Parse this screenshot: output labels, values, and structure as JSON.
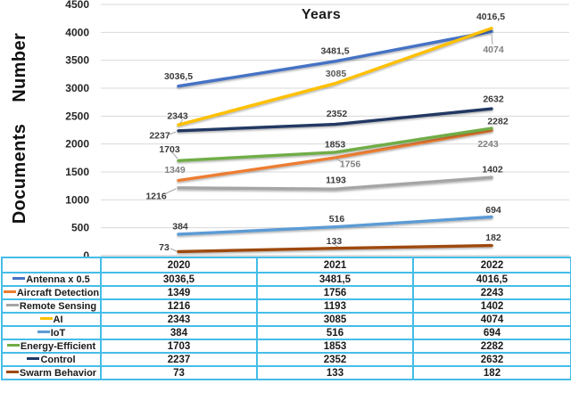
{
  "chart_data": {
    "type": "line",
    "title": "Years",
    "ylabel": "Documents  Number",
    "xlabel": "",
    "ylim": [
      0,
      4500
    ],
    "ytick_step": 500,
    "grid": true,
    "grid_color": "#D9D9D9",
    "axis_color": "#BFBFBF",
    "table_border_color": "#45BDE8",
    "legend_position": "table-left-column",
    "categories": [
      "2020",
      "2021",
      "2022"
    ],
    "series": [
      {
        "name": "Antenna x 0.5",
        "color": "#4472C4",
        "values": [
          3036.5,
          3481.5,
          4016.5
        ],
        "labels": [
          "3036,5",
          "3481,5",
          "4016,5"
        ],
        "label_colors": [
          "#3a3a3a",
          "#3a3a3a",
          "#3a3a3a"
        ]
      },
      {
        "name": "Aircraft Detection",
        "color": "#ED7D31",
        "values": [
          1349,
          1756,
          2243
        ],
        "labels": [
          "1349",
          "1756",
          "2243"
        ],
        "label_colors": [
          "#7F7F7F",
          "#7F7F7F",
          "#7F7F7F"
        ]
      },
      {
        "name": "Remote Sensing",
        "color": "#A5A5A5",
        "values": [
          1216,
          1193,
          1402
        ],
        "labels": [
          "1216",
          "1193",
          "1402"
        ],
        "label_colors": [
          "#3a3a3a",
          "#3a3a3a",
          "#3a3a3a"
        ]
      },
      {
        "name": "AI",
        "color": "#FFC000",
        "values": [
          2343,
          3085,
          4074
        ],
        "labels": [
          "2343",
          "3085",
          "4074"
        ],
        "label_colors": [
          "#3a3a3a",
          "#595959",
          "#7F7F7F"
        ]
      },
      {
        "name": "IoT",
        "color": "#5B9BD5",
        "values": [
          384,
          516,
          694
        ],
        "labels": [
          "384",
          "516",
          "694"
        ],
        "label_colors": [
          "#3a3a3a",
          "#3a3a3a",
          "#3a3a3a"
        ]
      },
      {
        "name": "Energy-Efficient",
        "color": "#70AD47",
        "values": [
          1703,
          1853,
          2282
        ],
        "labels": [
          "1703",
          "1853",
          "2282"
        ],
        "label_colors": [
          "#3a3a3a",
          "#3a3a3a",
          "#3a3a3a"
        ]
      },
      {
        "name": "Control",
        "color": "#203864",
        "values": [
          2237,
          2352,
          2632
        ],
        "labels": [
          "2237",
          "2352",
          "2632"
        ],
        "label_colors": [
          "#3a3a3a",
          "#3a3a3a",
          "#3a3a3a"
        ]
      },
      {
        "name": "Swarm Behavior",
        "color": "#9E480E",
        "values": [
          73,
          133,
          182
        ],
        "labels": [
          "73",
          "133",
          "182"
        ],
        "label_colors": [
          "#3a3a3a",
          "#3a3a3a",
          "#3a3a3a"
        ]
      }
    ]
  }
}
